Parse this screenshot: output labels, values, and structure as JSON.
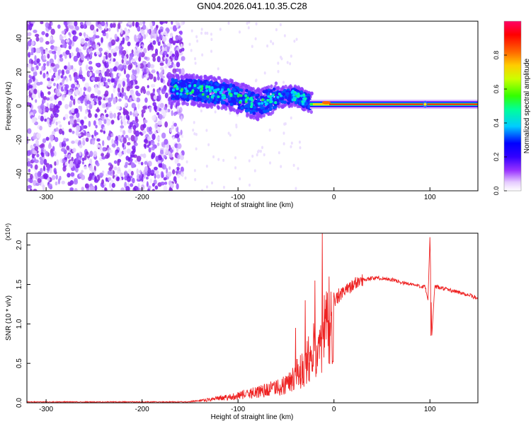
{
  "title": "GN04.2026.041.10.35.C28",
  "chart_data": [
    {
      "type": "heatmap",
      "xlabel": "Height of straight line (km)",
      "ylabel": "Frequency (Hz)",
      "xlim": [
        -320,
        150
      ],
      "ylim": [
        -50,
        50
      ],
      "x_ticks": [
        "-300",
        "-200",
        "-100",
        "0",
        "100"
      ],
      "y_ticks": [
        "-40",
        "-20",
        "0",
        "20",
        "40"
      ],
      "colorbar": {
        "label": "Normalized spectral amplitude",
        "range": [
          0,
          1
        ],
        "ticks": [
          "0.0",
          "0.2",
          "0.4",
          "0.6",
          "0.8"
        ],
        "colors": [
          "#ffffff",
          "#e6ccff",
          "#9933ff",
          "#6600ff",
          "#0000ff",
          "#00ccff",
          "#00ff66",
          "#66ff00",
          "#ffff00",
          "#ff9900",
          "#ff0000",
          "#ff0066"
        ]
      },
      "regions": [
        {
          "x_range": [
            -320,
            -172
          ],
          "freq_range": [
            -50,
            50
          ],
          "amplitude": 0.1
        },
        {
          "x_range": [
            -172,
            -120
          ],
          "freq_range": [
            2,
            20
          ],
          "amplitude": 0.3
        },
        {
          "x_range": [
            -120,
            -60
          ],
          "freq_range": [
            -8,
            10
          ],
          "amplitude": 0.3
        },
        {
          "x_range": [
            -60,
            -25
          ],
          "freq_range": [
            -2,
            12
          ],
          "amplitude": 0.35
        },
        {
          "x_range": [
            -25,
            150
          ],
          "freq_range": [
            0,
            2
          ],
          "amplitude": 0.9
        }
      ],
      "ridge": {
        "x": [
          -172,
          -140,
          -110,
          -80,
          -60,
          -40,
          -25,
          0,
          90,
          150
        ],
        "freq": [
          10,
          9,
          7,
          1,
          5,
          6,
          2,
          1,
          1,
          1
        ]
      }
    },
    {
      "type": "line",
      "xlabel": "Height of straight line (km)",
      "ylabel": "SNR (10 * v/v)",
      "multiplier": "(x10⁴)",
      "xlim": [
        -320,
        150
      ],
      "ylim": [
        0,
        2.15
      ],
      "x_ticks": [
        "-300",
        "-200",
        "-100",
        "0",
        "100"
      ],
      "y_ticks": [
        "0.0",
        "0.5",
        "1.0",
        "1.5",
        "2.0"
      ],
      "color": "#ee2222",
      "series": [
        {
          "x": [
            -320,
            -250,
            -200,
            -160,
            -140,
            -130,
            -120,
            -110,
            -100,
            -90,
            -80,
            -70,
            -60,
            -50,
            -40,
            -35,
            -30,
            -25,
            -20,
            -15,
            -10,
            -5,
            0,
            10,
            20,
            30,
            40,
            50,
            60,
            70,
            80,
            90,
            95,
            98,
            100,
            102,
            105,
            110,
            120,
            130,
            140,
            150
          ],
          "values": [
            0.0,
            0.0,
            0.0,
            0.01,
            0.03,
            0.05,
            0.07,
            0.09,
            0.12,
            0.14,
            0.17,
            0.2,
            0.24,
            0.3,
            0.42,
            0.5,
            0.6,
            0.72,
            0.85,
            0.98,
            1.1,
            1.2,
            1.28,
            1.4,
            1.5,
            1.56,
            1.58,
            1.58,
            1.56,
            1.53,
            1.5,
            1.48,
            1.47,
            1.3,
            2.1,
            0.85,
            1.47,
            1.46,
            1.43,
            1.4,
            1.37,
            1.32
          ]
        }
      ],
      "spikes": [
        {
          "x": -40,
          "value": 0.95
        },
        {
          "x": -30,
          "value": 1.3
        },
        {
          "x": -20,
          "value": 1.55
        },
        {
          "x": -12,
          "value": 2.15
        },
        {
          "x": -5,
          "value": 1.6
        },
        {
          "x": 5,
          "value": 1.45
        },
        {
          "x": 100,
          "value": 2.1
        },
        {
          "x": 101,
          "value": 0.85
        }
      ]
    }
  ]
}
